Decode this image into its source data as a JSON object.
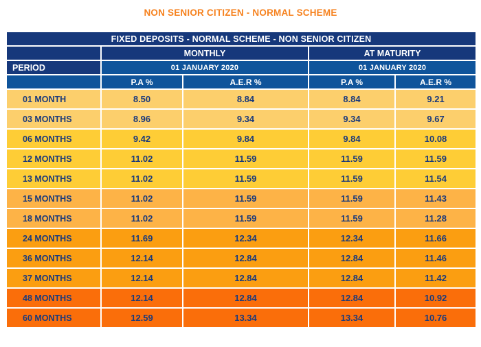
{
  "page_title": "NON SENIOR CITIZEN - NORMAL SCHEME",
  "colors": {
    "page_title_orange": "#F6821F",
    "header_navy": "#16387B",
    "header_steel_blue": "#0F549B",
    "value_text_navy": "#1A3A7C",
    "row_tier_colors": [
      "#FCCF6C",
      "#FECD36",
      "#FDB347",
      "#FB9E11",
      "#FA6E0A"
    ]
  },
  "chart_data": {
    "type": "table",
    "title": "FIXED DEPOSITS - NORMAL SCHEME - NON SENIOR CITIZEN",
    "period_label": "PERIOD",
    "groups": [
      {
        "label": "MONTHLY",
        "date": "01 JANUARY 2020",
        "columns": [
          "P.A %",
          "A.E.R %"
        ]
      },
      {
        "label": "AT MATURITY",
        "date": "01 JANUARY 2020",
        "columns": [
          "P.A %",
          "A.E.R %"
        ]
      }
    ],
    "column_order": [
      "PERIOD",
      "MONTHLY P.A %",
      "MONTHLY A.E.R %",
      "AT MATURITY P.A %",
      "AT MATURITY A.E.R %"
    ],
    "rows": [
      {
        "period": "01 MONTH",
        "values": [
          "8.50",
          "8.84",
          "8.84",
          "9.21"
        ],
        "tier": 0
      },
      {
        "period": "03 MONTHS",
        "values": [
          "8.96",
          "9.34",
          "9.34",
          "9.67"
        ],
        "tier": 0
      },
      {
        "period": "06 MONTHS",
        "values": [
          "9.42",
          "9.84",
          "9.84",
          "10.08"
        ],
        "tier": 1
      },
      {
        "period": "12 MONTHS",
        "values": [
          "11.02",
          "11.59",
          "11.59",
          "11.59"
        ],
        "tier": 1
      },
      {
        "period": "13 MONTHS",
        "values": [
          "11.02",
          "11.59",
          "11.59",
          "11.54"
        ],
        "tier": 1
      },
      {
        "period": "15 MONTHS",
        "values": [
          "11.02",
          "11.59",
          "11.59",
          "11.43"
        ],
        "tier": 2
      },
      {
        "period": "18 MONTHS",
        "values": [
          "11.02",
          "11.59",
          "11.59",
          "11.28"
        ],
        "tier": 2
      },
      {
        "period": "24 MONTHS",
        "values": [
          "11.69",
          "12.34",
          "12.34",
          "11.66"
        ],
        "tier": 3
      },
      {
        "period": "36 MONTHS",
        "values": [
          "12.14",
          "12.84",
          "12.84",
          "11.46"
        ],
        "tier": 3
      },
      {
        "period": "37 MONTHS",
        "values": [
          "12.14",
          "12.84",
          "12.84",
          "11.42"
        ],
        "tier": 3
      },
      {
        "period": "48 MONTHS",
        "values": [
          "12.14",
          "12.84",
          "12.84",
          "10.92"
        ],
        "tier": 4
      },
      {
        "period": "60 MONTHS",
        "values": [
          "12.59",
          "13.34",
          "13.34",
          "10.76"
        ],
        "tier": 4
      }
    ]
  }
}
